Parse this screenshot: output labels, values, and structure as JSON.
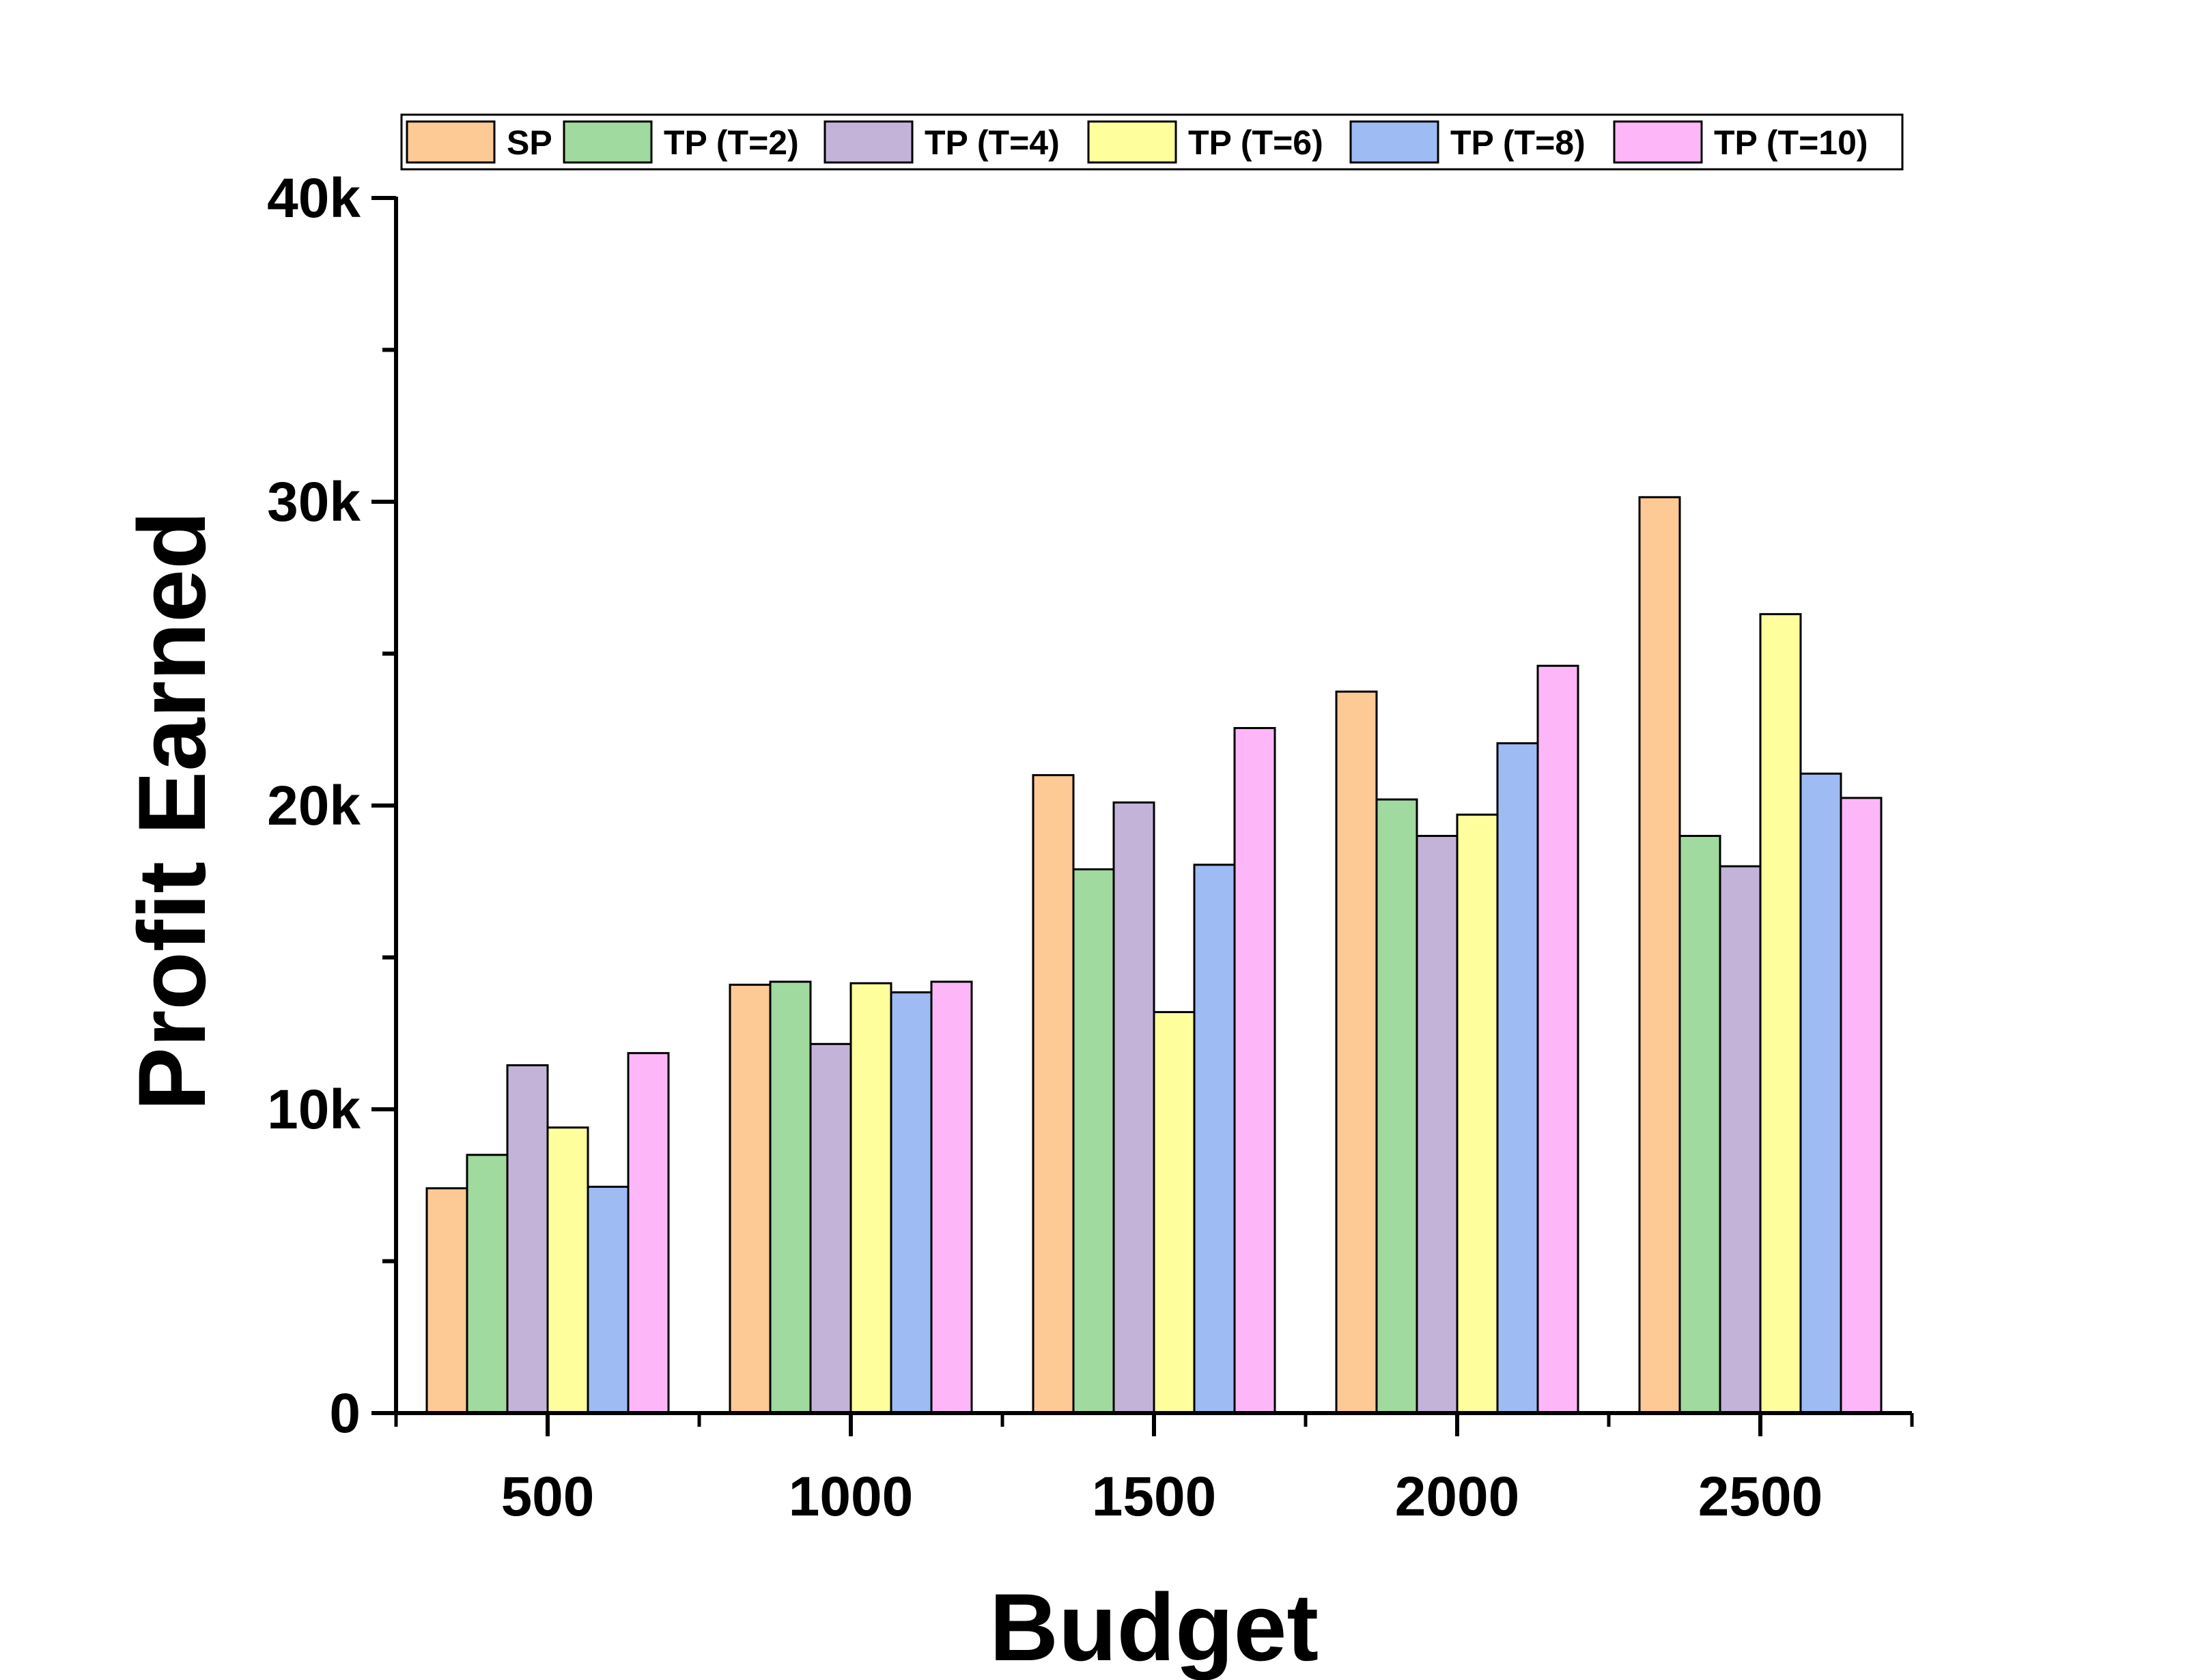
{
  "chart_data": {
    "type": "bar",
    "xlabel": "Budget",
    "ylabel": "Profit Earned",
    "categories": [
      "500",
      "1000",
      "1500",
      "2000",
      "2500"
    ],
    "ylim": [
      0,
      40000
    ],
    "yticks": [
      {
        "value": 0,
        "label": "0"
      },
      {
        "value": 10000,
        "label": "10k"
      },
      {
        "value": 20000,
        "label": "20k"
      },
      {
        "value": 30000,
        "label": "30k"
      },
      {
        "value": 40000,
        "label": "40k"
      }
    ],
    "y_minor_tick_step": 5000,
    "grid": false,
    "legend_position": "top",
    "series": [
      {
        "name": "SP",
        "color": "#FDC994",
        "values": [
          7400,
          14100,
          21000,
          23750,
          30150
        ]
      },
      {
        "name": "TP (T=2)",
        "color": "#A0DA9E",
        "values": [
          8500,
          14200,
          17900,
          20200,
          19000
        ]
      },
      {
        "name": "TP (T=4)",
        "color": "#C4B3D9",
        "values": [
          11450,
          12150,
          20100,
          19000,
          18000
        ]
      },
      {
        "name": "TP (T=6)",
        "color": "#FEFE9D",
        "values": [
          9400,
          14150,
          13200,
          19700,
          26300
        ]
      },
      {
        "name": "TP (T=8)",
        "color": "#9EBBF3",
        "values": [
          7450,
          13850,
          18050,
          22050,
          21050
        ]
      },
      {
        "name": "TP (T=10)",
        "color": "#FDB6F8",
        "values": [
          11850,
          14200,
          22550,
          24600,
          20250
        ]
      }
    ]
  }
}
